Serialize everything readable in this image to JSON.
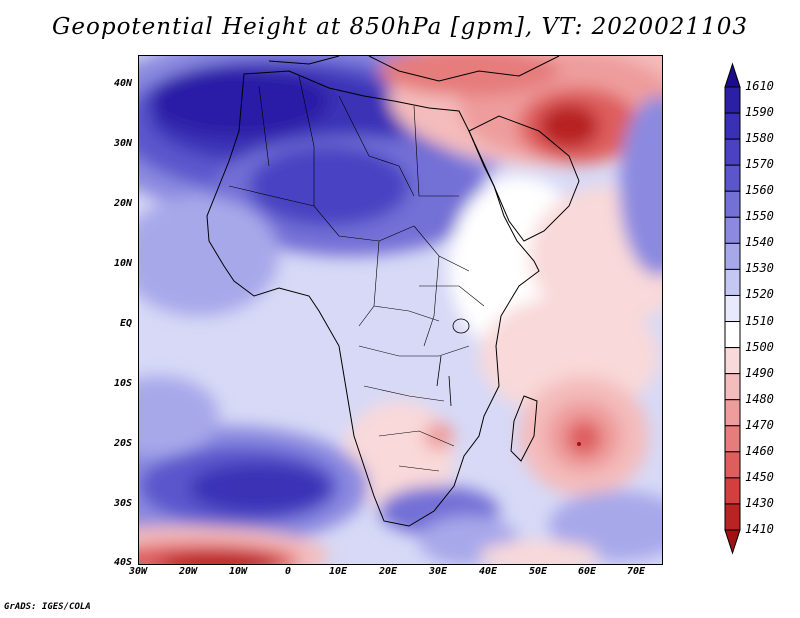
{
  "title": "Geopotential Height at 850hPa [gpm], VT: 2020021103",
  "credit": "GrADS: IGES/COLA",
  "axes": {
    "lat_labels": [
      "40N",
      "30N",
      "20N",
      "10N",
      "EQ",
      "10S",
      "20S",
      "30S",
      "40S"
    ],
    "lon_labels": [
      "30W",
      "20W",
      "10W",
      "0",
      "10E",
      "20E",
      "30E",
      "40E",
      "50E",
      "60E",
      "70E"
    ]
  },
  "colorbar": {
    "labels": [
      "1610",
      "1590",
      "1580",
      "1570",
      "1560",
      "1550",
      "1540",
      "1530",
      "1520",
      "1510",
      "1500",
      "1490",
      "1480",
      "1470",
      "1460",
      "1450",
      "1430",
      "1410"
    ],
    "colors": [
      "#1c0c8c",
      "#2b1fa6",
      "#3a30b6",
      "#4a42c2",
      "#5c56cc",
      "#7370d6",
      "#8b8ae0",
      "#a7a8ea",
      "#c5c7f3",
      "#e8e9fb",
      "#ffffff",
      "#f9d9d9",
      "#f4bcbc",
      "#ee9c9c",
      "#e67c7c",
      "#de5d5d",
      "#d23f3f",
      "#b82424",
      "#a01212"
    ]
  },
  "chart_data": {
    "type": "heatmap",
    "title": "Geopotential Height at 850hPa [gpm], VT: 2020021103",
    "variable": "Geopotential Height",
    "level": "850hPa",
    "units": "gpm",
    "valid_time": "2020021103",
    "lon_range": [
      -30,
      75
    ],
    "lat_range": [
      -40,
      45
    ],
    "levels": [
      1410,
      1430,
      1450,
      1460,
      1470,
      1480,
      1490,
      1500,
      1510,
      1520,
      1530,
      1540,
      1550,
      1560,
      1570,
      1580,
      1590,
      1610
    ]
  }
}
